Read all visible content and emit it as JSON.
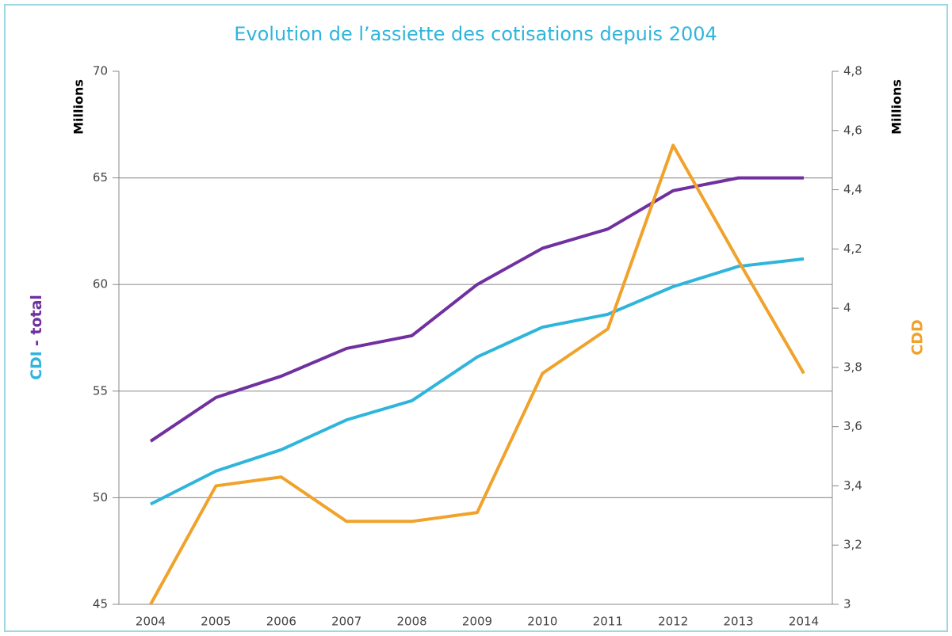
{
  "chart_data": {
    "type": "line",
    "title": "Evolution de l’assiette des cotisations depuis 2004",
    "y_unit": "Millions",
    "y2_unit": "Millions",
    "y_label": [
      "CDI",
      "- total"
    ],
    "y2_label": "CDD",
    "categories": [
      "2004",
      "2005",
      "2006",
      "2007",
      "2008",
      "2009",
      "2010",
      "2011",
      "2012",
      "2013",
      "2014"
    ],
    "series": [
      {
        "color": "#7030a0",
        "values": [
          52.65,
          54.7,
          55.7,
          57.0,
          57.6,
          60.0,
          61.7,
          62.6,
          64.4,
          65.0,
          65.0
        ]
      },
      {
        "color": "#2fb5dc",
        "values": [
          49.7,
          51.25,
          52.25,
          53.65,
          54.55,
          56.6,
          58.0,
          58.6,
          59.9,
          60.85,
          61.2
        ]
      },
      {
        "color": "#f0a22a",
        "axis": "y2",
        "values": [
          3.0,
          3.4,
          3.43,
          3.28,
          3.28,
          3.31,
          3.78,
          3.93,
          4.55,
          4.16,
          3.78
        ]
      }
    ],
    "ylim": [
      45,
      70
    ],
    "yticks": [
      45,
      50,
      55,
      60,
      65,
      70
    ],
    "y2lim": [
      3,
      4.8
    ],
    "y2ticks": [
      3,
      {
        "value": 3.2,
        "label": "3,2"
      },
      {
        "value": 3.4,
        "label": "3,4"
      },
      {
        "value": 3.6,
        "label": "3,6"
      },
      {
        "value": 3.8,
        "label": "3,8"
      },
      4,
      {
        "value": 4.2,
        "label": "4,2"
      },
      {
        "value": 4.4,
        "label": "4,4"
      },
      {
        "value": 4.6,
        "label": "4,6"
      },
      {
        "value": 4.8,
        "label": "4,8"
      }
    ],
    "grid": true
  }
}
